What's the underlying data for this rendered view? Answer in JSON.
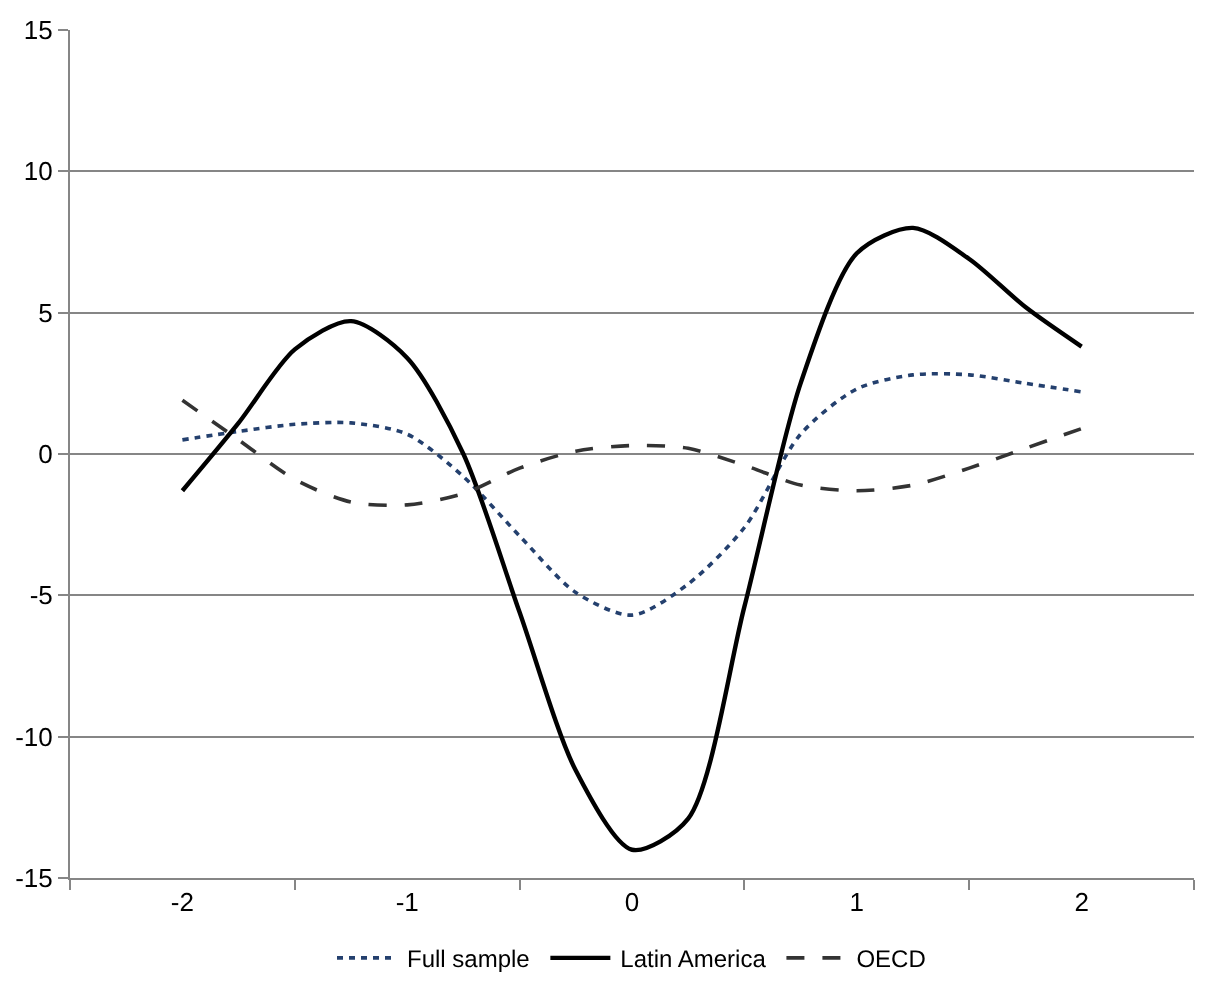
{
  "chart_data": {
    "type": "line",
    "x": [
      -2,
      -1.75,
      -1.5,
      -1.25,
      -1,
      -0.75,
      -0.5,
      -0.25,
      0,
      0.25,
      0.5,
      0.75,
      1,
      1.25,
      1.5,
      1.75,
      2
    ],
    "series": [
      {
        "name": "Full sample",
        "color": "#24406e",
        "line_style": "dotted",
        "values": [
          0.5,
          0.8,
          1.05,
          1.1,
          0.7,
          -0.8,
          -2.9,
          -4.9,
          -5.7,
          -4.6,
          -2.6,
          0.7,
          2.3,
          2.8,
          2.8,
          2.5,
          2.2
        ]
      },
      {
        "name": "Latin America",
        "color": "#000000",
        "line_style": "solid",
        "values": [
          -1.3,
          1.1,
          3.7,
          4.7,
          3.4,
          0.0,
          -5.6,
          -11.2,
          -14.0,
          -12.9,
          -5.4,
          2.5,
          7.1,
          8.0,
          6.9,
          5.2,
          3.8
        ]
      },
      {
        "name": "OECD",
        "color": "#333333",
        "line_style": "dashed",
        "values": [
          1.9,
          0.5,
          -0.9,
          -1.7,
          -1.8,
          -1.4,
          -0.5,
          0.1,
          0.3,
          0.2,
          -0.4,
          -1.1,
          -1.3,
          -1.1,
          -0.5,
          0.2,
          0.9
        ]
      }
    ],
    "xlim": [
      -2.5,
      2.5
    ],
    "xticks": [
      {
        "value": -2.5,
        "label": null
      },
      -2,
      {
        "value": -1.5,
        "label": null
      },
      -1,
      {
        "value": -0.5,
        "label": null
      },
      0,
      {
        "value": 0.5,
        "label": null
      },
      1,
      {
        "value": 1.5,
        "label": null
      },
      2,
      {
        "value": 2.5,
        "label": null
      }
    ],
    "ylim": [
      -15,
      15
    ],
    "yticks": [
      -15,
      -10,
      -5,
      0,
      5,
      10,
      15
    ],
    "grid": "y",
    "legend": "bottom",
    "marker": "none"
  }
}
